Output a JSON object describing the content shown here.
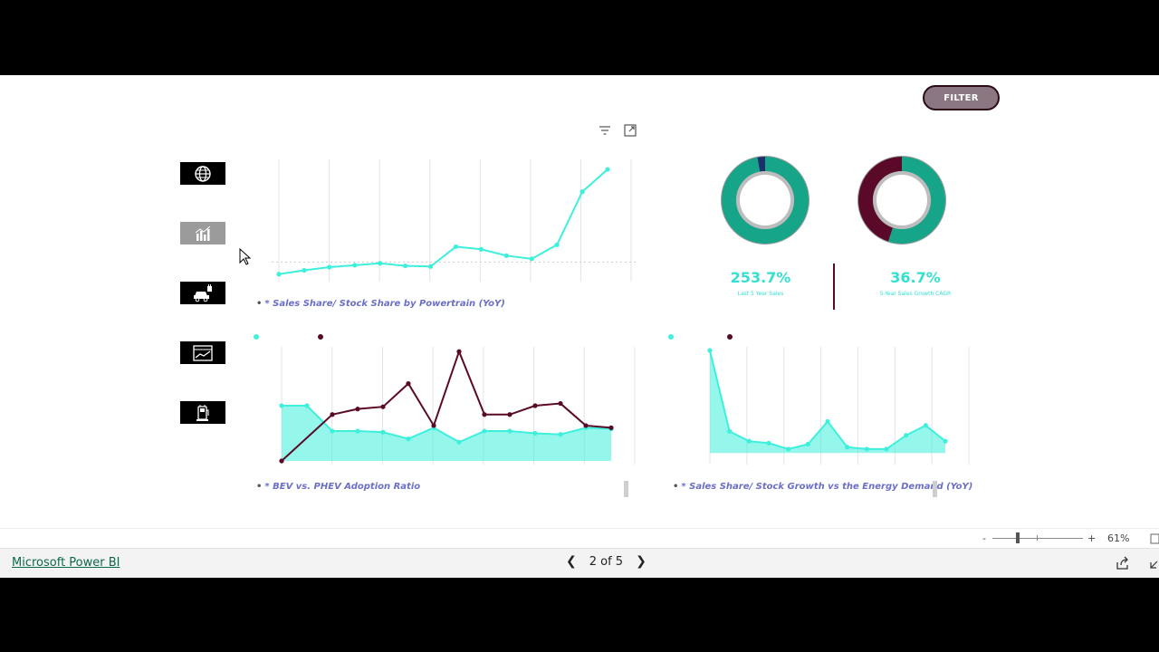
{
  "toolbar": {
    "filter_label": "FILTER"
  },
  "nav_icons": [
    "globe-icon",
    "bar-chart-icon",
    "ev-car-icon",
    "line-trend-icon",
    "charging-station-icon"
  ],
  "kpis": [
    {
      "value": "253.7%",
      "label": "Last 5 Year Sales"
    },
    {
      "value": "36.7%",
      "label": "5-Year Sales Growth CAGR"
    }
  ],
  "donuts": [
    {
      "share_primary": 0.97,
      "share_secondary": 0.03,
      "primary_color": "#17a58a",
      "secondary_color": "#1a2f6b"
    },
    {
      "share_primary": 0.55,
      "share_secondary": 0.45,
      "primary_color": "#17a58a",
      "secondary_color": "#5a0a28"
    }
  ],
  "charts": {
    "sales_share": {
      "title": "* Sales Share/ Stock Share by Powertrain (YoY)",
      "values": [
        0.6,
        1.2,
        1.7,
        2.0,
        2.3,
        1.9,
        1.8,
        4.9,
        4.5,
        3.5,
        3.0,
        5.2,
        13.5,
        17.0
      ],
      "ref_line": 2.5,
      "ylim": [
        0,
        18
      ],
      "color": "#3ef0dc"
    },
    "bev_phev": {
      "title": "* BEV vs. PHEV Adoption Ratio",
      "series": [
        {
          "name": "",
          "color": "#3ef0dc",
          "values": [
            50,
            50,
            27,
            27,
            26,
            20,
            30,
            17,
            27,
            27,
            25,
            24,
            30,
            29
          ]
        },
        {
          "name": "",
          "color": "#5a0a28",
          "values": [
            0,
            null,
            42,
            47,
            49,
            70,
            32,
            99,
            42,
            42,
            50,
            52,
            32,
            30
          ]
        }
      ],
      "ylim": [
        0,
        100
      ]
    },
    "energy_demand": {
      "title": "* Sales Share/ Stock Growth vs the Energy Demand (YoY)",
      "series": [
        {
          "name": "",
          "color": "#3ef0dc",
          "values": [
            100,
            18,
            8,
            6,
            0,
            5,
            28,
            2,
            0,
            0,
            14,
            24,
            8
          ]
        },
        {
          "name": "",
          "color": "#5a0a28",
          "values": []
        }
      ],
      "ylim": [
        -12,
        100
      ]
    }
  },
  "zoom": {
    "minus": "-",
    "plus": "+",
    "level": "61%"
  },
  "footer": {
    "brand": "Microsoft Power BI",
    "page_indicator": "2 of 5"
  }
}
